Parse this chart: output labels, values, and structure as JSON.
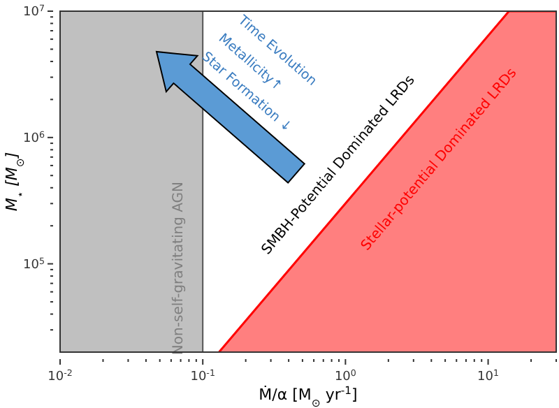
{
  "chart_data": {
    "type": "area",
    "xlabel": "Ṁ/α [M$_{⊙}$ yr$^{-1}$]",
    "ylabel": "M$_{⋆}$ [M$_{⊙}$]",
    "log": "xy",
    "xlim": [
      0.01,
      30
    ],
    "ylim": [
      20000,
      10000000
    ],
    "xticks": [
      {
        "value": 0.01,
        "label": "10$^{-2}$"
      },
      {
        "value": 0.02,
        "label": null
      },
      {
        "value": 0.03,
        "label": null
      },
      {
        "value": 0.04,
        "label": null
      },
      {
        "value": 0.05,
        "label": null
      },
      {
        "value": 0.06,
        "label": null
      },
      {
        "value": 0.07,
        "label": null
      },
      {
        "value": 0.08,
        "label": null
      },
      {
        "value": 0.09,
        "label": null
      },
      {
        "value": 0.1,
        "label": "10$^{-1}$"
      },
      {
        "value": 0.2,
        "label": null
      },
      {
        "value": 0.3,
        "label": null
      },
      {
        "value": 0.4,
        "label": null
      },
      {
        "value": 0.5,
        "label": null
      },
      {
        "value": 0.6,
        "label": null
      },
      {
        "value": 0.7,
        "label": null
      },
      {
        "value": 0.8,
        "label": null
      },
      {
        "value": 0.9,
        "label": null
      },
      {
        "value": 1,
        "label": "10$^{0}$"
      },
      {
        "value": 2,
        "label": null
      },
      {
        "value": 3,
        "label": null
      },
      {
        "value": 4,
        "label": null
      },
      {
        "value": 5,
        "label": null
      },
      {
        "value": 6,
        "label": null
      },
      {
        "value": 7,
        "label": null
      },
      {
        "value": 8,
        "label": null
      },
      {
        "value": 9,
        "label": null
      },
      {
        "value": 10,
        "label": "10$^{1}$"
      },
      {
        "value": 20,
        "label": null
      },
      {
        "value": 30,
        "label": null
      }
    ],
    "yticks": [
      {
        "value": 30000,
        "label": null
      },
      {
        "value": 40000,
        "label": null
      },
      {
        "value": 50000,
        "label": null
      },
      {
        "value": 60000,
        "label": null
      },
      {
        "value": 70000,
        "label": null
      },
      {
        "value": 80000,
        "label": null
      },
      {
        "value": 90000,
        "label": null
      },
      {
        "value": 100000,
        "label": "10$^{5}$"
      },
      {
        "value": 200000,
        "label": null
      },
      {
        "value": 300000,
        "label": null
      },
      {
        "value": 400000,
        "label": null
      },
      {
        "value": 500000,
        "label": null
      },
      {
        "value": 600000,
        "label": null
      },
      {
        "value": 700000,
        "label": null
      },
      {
        "value": 800000,
        "label": null
      },
      {
        "value": 900000,
        "label": null
      },
      {
        "value": 1000000,
        "label": "10$^{6}$"
      },
      {
        "value": 2000000,
        "label": null
      },
      {
        "value": 3000000,
        "label": null
      },
      {
        "value": 4000000,
        "label": null
      },
      {
        "value": 5000000,
        "label": null
      },
      {
        "value": 6000000,
        "label": null
      },
      {
        "value": 7000000,
        "label": null
      },
      {
        "value": 8000000,
        "label": null
      },
      {
        "value": 9000000,
        "label": null
      },
      {
        "value": 10000000,
        "label": "10$^{7}$"
      }
    ],
    "series": [
      {
        "color": "#ff0000",
        "x": [
          0.13,
          14,
          30
        ],
        "values": [
          20000,
          10000000,
          10000000
        ]
      }
    ],
    "bands": [
      {
        "axis": "x",
        "from": 0.01,
        "to": 0.1,
        "label": "Non-self-gravitating AGN",
        "color": "#c0c0c0"
      }
    ],
    "annotations": [
      "SMBH-Potential Dominated LRDs",
      "Stellar-potential Dominated LRDs",
      "Time Evolution",
      "Metallicity↑",
      "Star Formation ↓"
    ]
  }
}
